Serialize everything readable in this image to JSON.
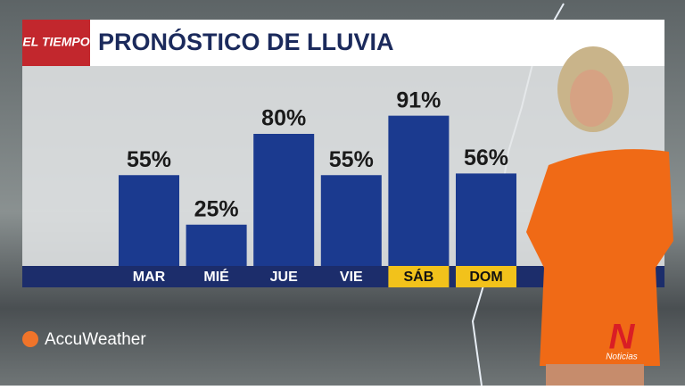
{
  "chart_data": {
    "type": "bar",
    "logo": "EL TIEMPO",
    "title": "PRONÓSTICO DE LLUVIA",
    "categories": [
      "MAR",
      "MIÉ",
      "JUE",
      "VIE",
      "SÁB",
      "DOM"
    ],
    "values": [
      55,
      25,
      80,
      55,
      91,
      56
    ],
    "value_labels": [
      "55%",
      "25%",
      "80%",
      "55%",
      "91%",
      "56%"
    ],
    "color": "#1b3a8f",
    "highlight": [
      4,
      5
    ],
    "highlight_color": "#f2c21b",
    "ylim": [
      0,
      100
    ]
  },
  "branding": {
    "provider": "AccuWeather",
    "network": "N",
    "network_sub": "Noticias"
  }
}
